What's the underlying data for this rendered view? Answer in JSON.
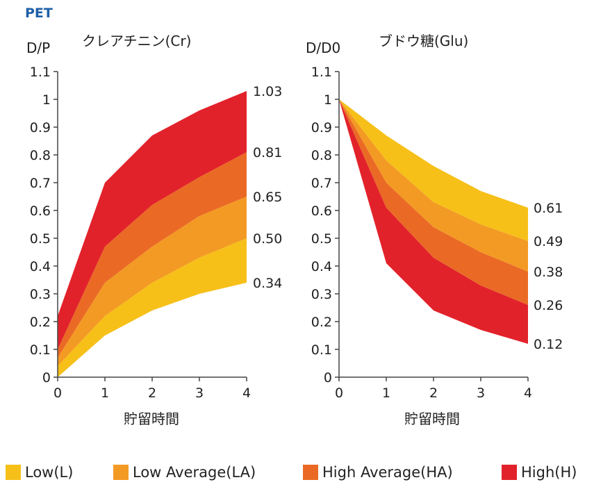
{
  "header": {
    "title": "PET"
  },
  "colors": {
    "L": "#f6c019",
    "LA": "#f39a24",
    "HA": "#ea6a25",
    "H": "#e2222b"
  },
  "legend": [
    {
      "key": "L",
      "label": "Low(L)"
    },
    {
      "key": "LA",
      "label": "Low Average(LA)"
    },
    {
      "key": "HA",
      "label": "High Average(HA)"
    },
    {
      "key": "H",
      "label": "High(H)"
    }
  ],
  "chart_data": [
    {
      "type": "area",
      "title": "クレアチニン(Cr)",
      "ylabel": "D/P",
      "xlabel": "貯留時間",
      "x": [
        0,
        1,
        2,
        3,
        4
      ],
      "xticks": [
        "0",
        "1",
        "2",
        "3",
        "4"
      ],
      "yticks": [
        "0",
        "0.1",
        "0.2",
        "0.3",
        "0.4",
        "0.5",
        "0.6",
        "0.7",
        "0.8",
        "0.9",
        "1",
        "1.1"
      ],
      "xlim": [
        0,
        4
      ],
      "ylim": [
        0,
        1.1
      ],
      "boundaries": [
        [
          0.0,
          0.15,
          0.24,
          0.3,
          0.34
        ],
        [
          0.04,
          0.22,
          0.34,
          0.43,
          0.5
        ],
        [
          0.07,
          0.34,
          0.47,
          0.58,
          0.65
        ],
        [
          0.1,
          0.47,
          0.62,
          0.72,
          0.81
        ],
        [
          0.22,
          0.7,
          0.87,
          0.96,
          1.03
        ]
      ],
      "end_labels": [
        "1.03",
        "0.81",
        "0.65",
        "0.50",
        "0.34"
      ],
      "grid": false
    },
    {
      "type": "area",
      "title": "ブドウ糖(Glu)",
      "ylabel": "D/D0",
      "xlabel": "貯留時間",
      "x": [
        0,
        1,
        2,
        3,
        4
      ],
      "xticks": [
        "0",
        "1",
        "2",
        "3",
        "4"
      ],
      "yticks": [
        "0",
        "0.1",
        "0.2",
        "0.3",
        "0.4",
        "0.5",
        "0.6",
        "0.7",
        "0.8",
        "0.9",
        "1",
        "1.1"
      ],
      "xlim": [
        0,
        4
      ],
      "ylim": [
        0,
        1.1
      ],
      "boundaries": [
        [
          1.0,
          0.41,
          0.24,
          0.17,
          0.12
        ],
        [
          1.0,
          0.61,
          0.43,
          0.33,
          0.26
        ],
        [
          1.0,
          0.7,
          0.54,
          0.45,
          0.38
        ],
        [
          1.0,
          0.78,
          0.63,
          0.55,
          0.49
        ],
        [
          1.0,
          0.87,
          0.76,
          0.67,
          0.61
        ]
      ],
      "end_labels": [
        "0.61",
        "0.49",
        "0.38",
        "0.26",
        "0.12"
      ],
      "grid": false
    }
  ]
}
